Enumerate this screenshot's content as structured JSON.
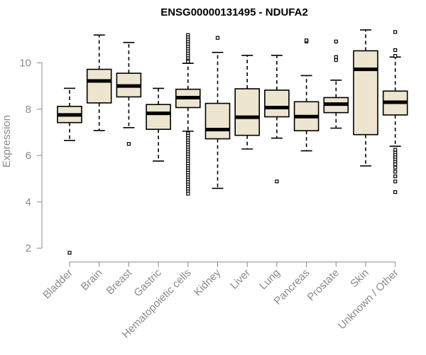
{
  "chart_data": {
    "type": "boxplot",
    "title": "ENSG00000131495 - NDUFA2",
    "xlabel": "",
    "ylabel": "Expression",
    "ylim": [
      1.6,
      11.6
    ],
    "yticks": [
      2,
      4,
      6,
      8,
      10
    ],
    "categories": [
      "Bladder",
      "Brain",
      "Breast",
      "Gastric",
      "Hematopoietic cells",
      "Kidney",
      "Liver",
      "Lung",
      "Pancreas",
      "Prostate",
      "Skin",
      "Unknown / Other"
    ],
    "box_fill": "#ede5cf",
    "series": [
      {
        "name": "Bladder",
        "whisker_low": 6.65,
        "q1": 7.42,
        "median": 7.75,
        "q3": 8.12,
        "whisker_high": 8.9,
        "outliers": [
          1.8
        ]
      },
      {
        "name": "Brain",
        "whisker_low": 7.08,
        "q1": 8.27,
        "median": 9.22,
        "q3": 9.72,
        "whisker_high": 11.2,
        "outliers": []
      },
      {
        "name": "Breast",
        "whisker_low": 7.2,
        "q1": 8.53,
        "median": 9.0,
        "q3": 9.55,
        "whisker_high": 10.88,
        "outliers": [
          6.5
        ]
      },
      {
        "name": "Gastric",
        "whisker_low": 5.76,
        "q1": 7.13,
        "median": 7.82,
        "q3": 8.2,
        "whisker_high": 8.9,
        "outliers": []
      },
      {
        "name": "Hematopoietic cells",
        "whisker_low": 7.05,
        "q1": 8.07,
        "median": 8.5,
        "q3": 8.86,
        "whisker_high": 9.98,
        "outliers": [
          11.2,
          11.1,
          11.0,
          10.9,
          10.8,
          10.7,
          10.6,
          10.5,
          10.4,
          10.3,
          10.2,
          10.1,
          10.05,
          6.95,
          6.85,
          6.75,
          6.65,
          6.55,
          6.45,
          6.35,
          6.25,
          6.15,
          6.05,
          5.95,
          5.85,
          5.75,
          5.65,
          5.55,
          5.45,
          5.35,
          5.25,
          5.15,
          5.05,
          4.95,
          4.85,
          4.75,
          4.65,
          4.55,
          4.45,
          4.35
        ]
      },
      {
        "name": "Kidney",
        "whisker_low": 4.58,
        "q1": 6.72,
        "median": 7.12,
        "q3": 8.25,
        "whisker_high": 10.45,
        "outliers": [
          11.08
        ]
      },
      {
        "name": "Liver",
        "whisker_low": 6.28,
        "q1": 6.87,
        "median": 7.65,
        "q3": 8.88,
        "whisker_high": 10.32,
        "outliers": []
      },
      {
        "name": "Lung",
        "whisker_low": 6.75,
        "q1": 7.67,
        "median": 8.07,
        "q3": 8.82,
        "whisker_high": 10.32,
        "outliers": [
          4.88
        ]
      },
      {
        "name": "Pancreas",
        "whisker_low": 6.2,
        "q1": 7.07,
        "median": 7.68,
        "q3": 8.32,
        "whisker_high": 9.45,
        "outliers": [
          10.92,
          10.97
        ]
      },
      {
        "name": "Prostate",
        "whisker_low": 7.18,
        "q1": 7.85,
        "median": 8.22,
        "q3": 8.5,
        "whisker_high": 9.25,
        "outliers": [
          10.92,
          10.25,
          10.12
        ]
      },
      {
        "name": "Skin",
        "whisker_low": 5.55,
        "q1": 6.9,
        "median": 9.72,
        "q3": 10.52,
        "whisker_high": 11.42,
        "outliers": []
      },
      {
        "name": "Unknown / Other",
        "whisker_low": 6.4,
        "q1": 7.75,
        "median": 8.3,
        "q3": 8.78,
        "whisker_high": 10.25,
        "outliers": [
          11.33,
          10.55,
          10.3,
          6.25,
          6.12,
          6.02,
          5.92,
          5.82,
          5.72,
          5.62,
          5.48,
          5.3,
          5.1,
          4.88,
          4.42
        ]
      }
    ]
  }
}
